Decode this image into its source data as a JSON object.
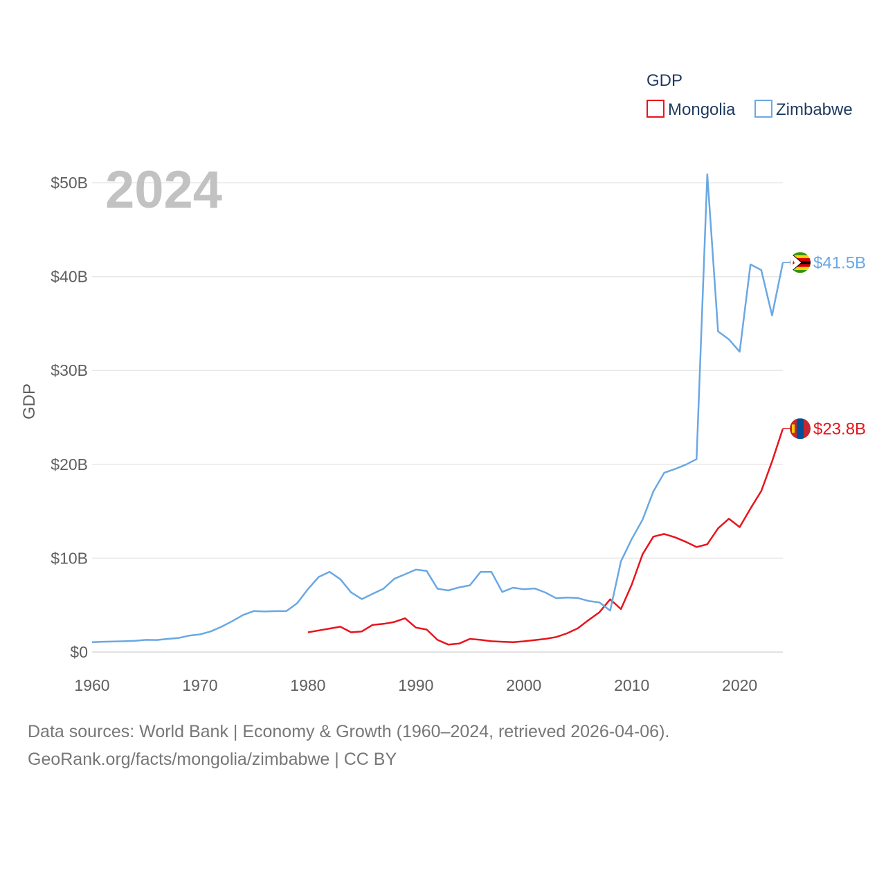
{
  "chart_data": {
    "type": "line",
    "ylabel": "GDP",
    "xlim": [
      1960,
      2024
    ],
    "ylim": [
      0,
      50000000000
    ],
    "y_ticks": [
      0,
      10000000000,
      20000000000,
      30000000000,
      40000000000,
      50000000000
    ],
    "y_tick_labels": [
      "$0",
      "$10B",
      "$20B",
      "$30B",
      "$40B",
      "$50B"
    ],
    "x_ticks": [
      1960,
      1970,
      1980,
      1990,
      2000,
      2010,
      2020
    ],
    "x_tick_labels": [
      "1960",
      "1970",
      "1980",
      "1990",
      "2000",
      "2010",
      "2020"
    ],
    "year_label": "2024",
    "legend": {
      "title": "GDP",
      "items": [
        "Mongolia",
        "Zimbabwe"
      ]
    },
    "series": [
      {
        "name": "Mongolia",
        "color": "#e8141c",
        "end_label": "$23.8B",
        "flag_icon": "mongolia-flag-icon",
        "x": [
          1980,
          1981,
          1982,
          1983,
          1984,
          1985,
          1986,
          1987,
          1988,
          1989,
          1990,
          1991,
          1992,
          1993,
          1994,
          1995,
          1996,
          1997,
          1998,
          1999,
          2000,
          2001,
          2002,
          2003,
          2004,
          2005,
          2006,
          2007,
          2008,
          2009,
          2010,
          2011,
          2012,
          2013,
          2014,
          2015,
          2016,
          2017,
          2018,
          2019,
          2020,
          2021,
          2022,
          2023,
          2024
        ],
        "values": [
          2.1,
          2.3,
          2.5,
          2.7,
          2.1,
          2.2,
          2.9,
          3.0,
          3.2,
          3.6,
          2.6,
          2.4,
          1.3,
          0.8,
          0.9,
          1.4,
          1.3,
          1.15,
          1.1,
          1.05,
          1.14,
          1.27,
          1.4,
          1.6,
          1.99,
          2.52,
          3.41,
          4.23,
          5.62,
          4.58,
          7.19,
          10.41,
          12.29,
          12.58,
          12.23,
          11.75,
          11.19,
          11.48,
          13.18,
          14.2,
          13.31,
          15.29,
          17.15,
          20.3,
          23.8
        ]
      },
      {
        "name": "Zimbabwe",
        "color": "#6aa8e3",
        "end_label": "$41.5B",
        "flag_icon": "zimbabwe-flag-icon",
        "x": [
          1960,
          1961,
          1962,
          1963,
          1964,
          1965,
          1966,
          1967,
          1968,
          1969,
          1970,
          1971,
          1972,
          1973,
          1974,
          1975,
          1976,
          1977,
          1978,
          1979,
          1980,
          1981,
          1982,
          1983,
          1984,
          1985,
          1986,
          1987,
          1988,
          1989,
          1990,
          1991,
          1992,
          1993,
          1994,
          1995,
          1996,
          1997,
          1998,
          1999,
          2000,
          2001,
          2002,
          2003,
          2004,
          2005,
          2006,
          2007,
          2008,
          2009,
          2010,
          2011,
          2012,
          2013,
          2014,
          2015,
          2016,
          2017,
          2018,
          2019,
          2020,
          2021,
          2022,
          2023,
          2024
        ],
        "values": [
          1.05,
          1.1,
          1.12,
          1.15,
          1.2,
          1.3,
          1.28,
          1.4,
          1.5,
          1.75,
          1.88,
          2.2,
          2.7,
          3.3,
          3.95,
          4.37,
          4.32,
          4.36,
          4.36,
          5.2,
          6.7,
          8.0,
          8.55,
          7.76,
          6.35,
          5.64,
          6.2,
          6.75,
          7.8,
          8.29,
          8.78,
          8.64,
          6.75,
          6.56,
          6.89,
          7.11,
          8.55,
          8.53,
          6.4,
          6.86,
          6.69,
          6.78,
          6.34,
          5.73,
          5.81,
          5.76,
          5.44,
          5.29,
          4.42,
          9.67,
          12.04,
          14.1,
          17.11,
          19.09,
          19.5,
          19.96,
          20.55,
          50.9,
          34.16,
          33.32,
          31.99,
          41.3,
          40.7,
          35.86,
          41.5
        ]
      }
    ]
  },
  "footer": {
    "line1": "Data sources: World Bank | Economy & Growth (1960–2024, retrieved 2026-04-06).",
    "line2": "GeoRank.org/facts/mongolia/zimbabwe | CC BY"
  }
}
